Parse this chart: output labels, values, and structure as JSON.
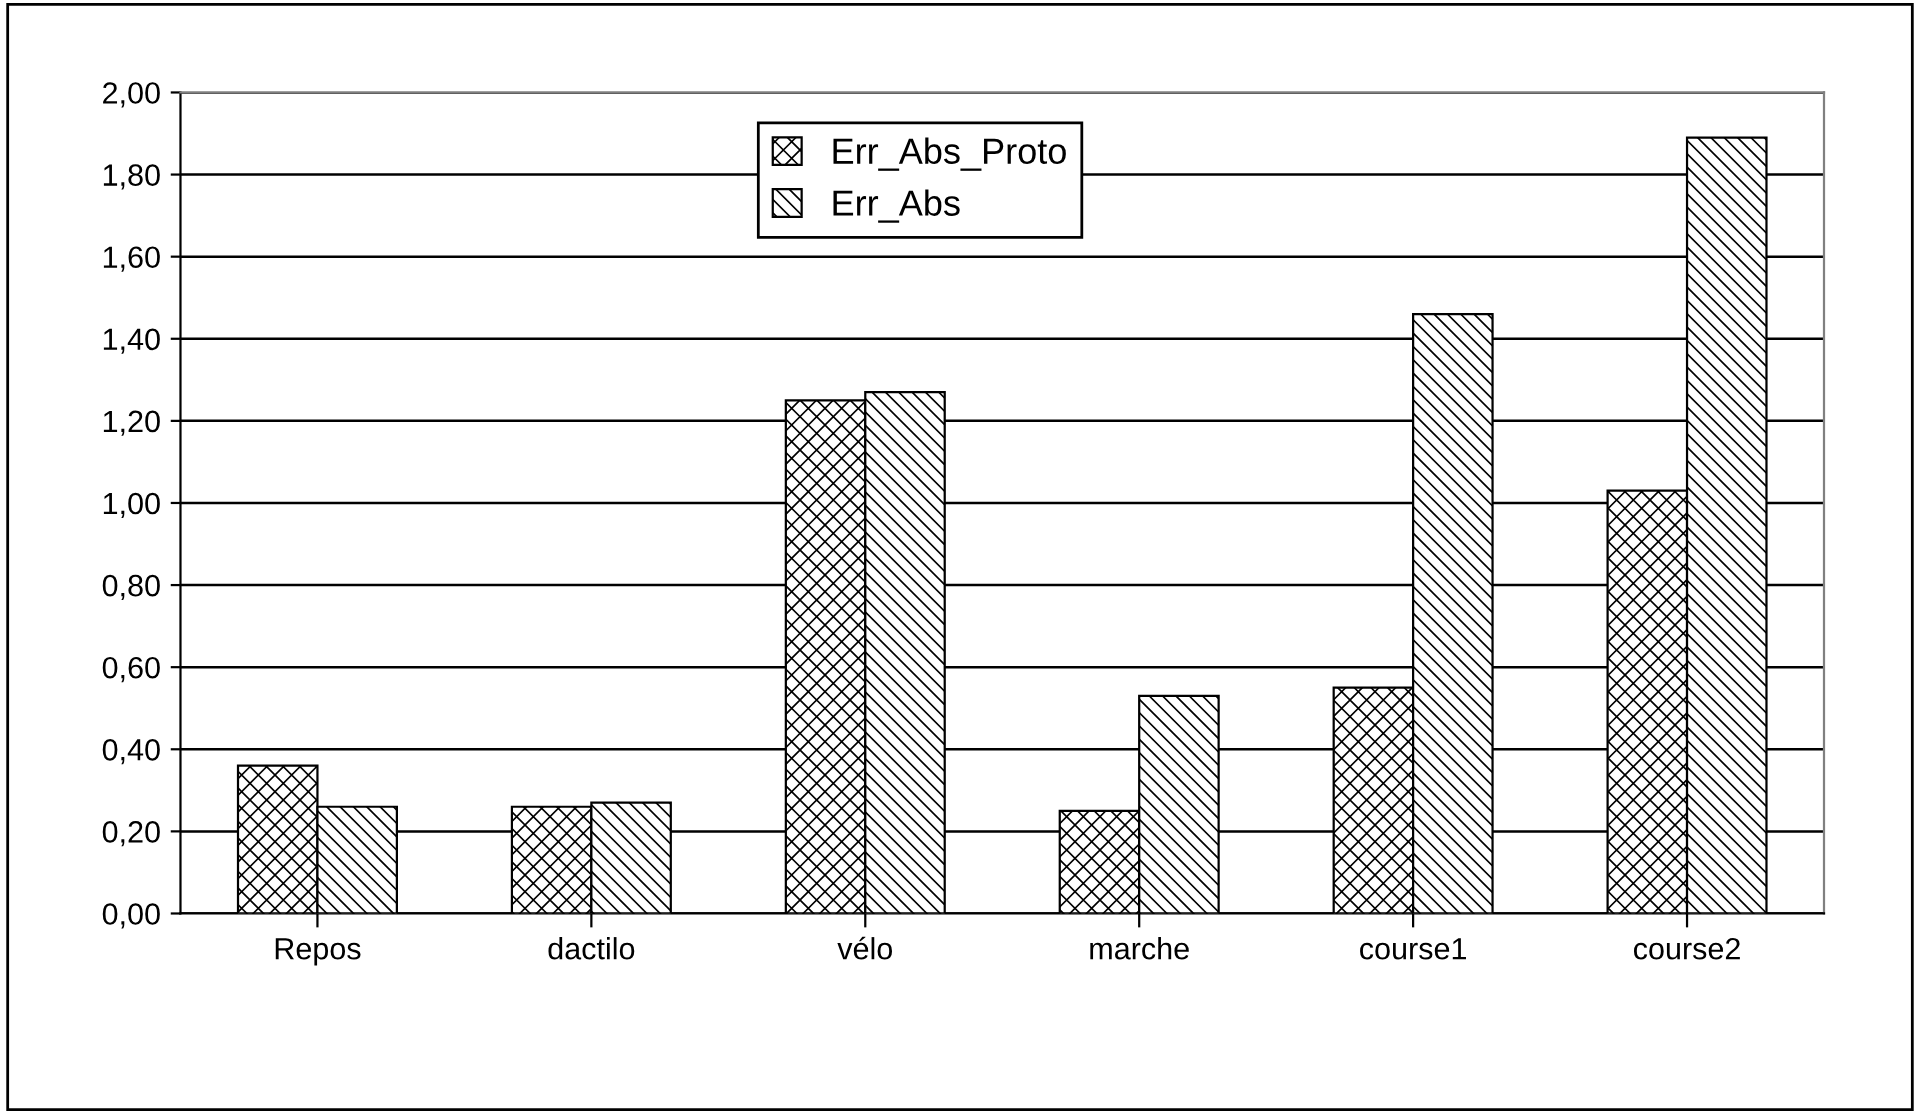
{
  "chart_data": {
    "type": "bar",
    "categories": [
      "Repos",
      "dactilo",
      "vélo",
      "marche",
      "course1",
      "course2"
    ],
    "series": [
      {
        "name": "Err_Abs_Proto",
        "color": "#000000",
        "values": [
          0.36,
          0.26,
          1.25,
          0.25,
          0.55,
          1.03
        ]
      },
      {
        "name": "Err_Abs",
        "color": "#000000",
        "values": [
          0.26,
          0.27,
          1.27,
          0.53,
          1.46,
          1.89
        ]
      }
    ],
    "ylim": [
      0,
      2
    ],
    "yticks": [
      {
        "value": 0,
        "label": "0,00"
      },
      {
        "value": 0.2,
        "label": "0,20"
      },
      {
        "value": 0.4,
        "label": "0,40"
      },
      {
        "value": 0.6,
        "label": "0,60"
      },
      {
        "value": 0.8,
        "label": "0,80"
      },
      {
        "value": 1.0,
        "label": "1,00"
      },
      {
        "value": 1.2,
        "label": "1,20"
      },
      {
        "value": 1.4,
        "label": "1,40"
      },
      {
        "value": 1.6,
        "label": "1,60"
      },
      {
        "value": 1.8,
        "label": "1,80"
      },
      {
        "value": 2.0,
        "label": "2,00"
      }
    ],
    "grid": "y",
    "legend": "top"
  }
}
